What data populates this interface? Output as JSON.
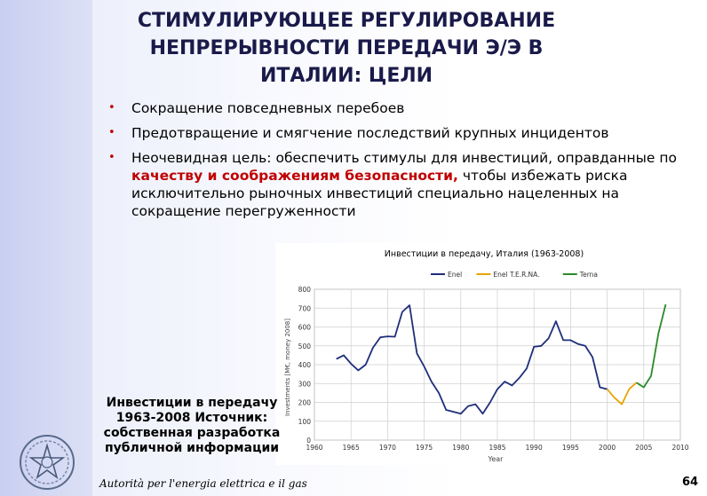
{
  "slide": {
    "title_lines": [
      "СТИМУЛИРУЮЩЕЕ РЕГУЛИРОВАНИЕ",
      "НЕПРЕРЫВНОСТИ ПЕРЕДАЧИ Э/Э В",
      "ИТАЛИИ: ЦЕЛИ"
    ],
    "bullets": [
      {
        "text": "Сокращение повседневных перебоев"
      },
      {
        "text": "Предотвращение и смягчение последствий крупных инцидентов"
      },
      {
        "text_before": "Неочевидная цель: обеспечить стимулы для инвестиций, оправданные по ",
        "highlight": "качеству и соображениям безопасности,",
        "text_after": " чтобы избежать риска исключительно рыночных инвестиций специально нацеленных на сокращение перегруженности"
      }
    ],
    "bullet_symbol": "•",
    "caption": "Инвестиции в передачу 1963-2008 Источник: собственная разработка публичной информации",
    "footer": "Autorità per l'energia elettrica e il gas",
    "page_number": "64",
    "colors": {
      "accent_red": "#c00000",
      "title": "#1a1a4a"
    }
  },
  "chart_data": {
    "type": "line",
    "title": "Инвестиции в передачу, Италия (1963-2008)",
    "xlabel": "Year",
    "ylabel": "Investments [M€, money 2008]",
    "xlim": [
      1960,
      2010
    ],
    "ylim": [
      0,
      800
    ],
    "xticks": [
      1960,
      1965,
      1970,
      1975,
      1980,
      1985,
      1990,
      1995,
      2000,
      2005,
      2010
    ],
    "yticks": [
      0,
      100,
      200,
      300,
      400,
      500,
      600,
      700,
      800
    ],
    "grid": true,
    "legend_position": "top",
    "series": [
      {
        "name": "Enel",
        "color": "#1f2f7a",
        "points": [
          [
            1963,
            430
          ],
          [
            1964,
            450
          ],
          [
            1965,
            405
          ],
          [
            1966,
            370
          ],
          [
            1967,
            400
          ],
          [
            1968,
            490
          ],
          [
            1969,
            545
          ],
          [
            1970,
            550
          ],
          [
            1971,
            548
          ],
          [
            1972,
            680
          ],
          [
            1973,
            715
          ],
          [
            1974,
            460
          ],
          [
            1975,
            390
          ],
          [
            1976,
            310
          ],
          [
            1977,
            250
          ],
          [
            1978,
            160
          ],
          [
            1979,
            150
          ],
          [
            1980,
            140
          ],
          [
            1981,
            180
          ],
          [
            1982,
            190
          ],
          [
            1983,
            140
          ],
          [
            1984,
            200
          ],
          [
            1985,
            270
          ],
          [
            1986,
            310
          ],
          [
            1987,
            290
          ],
          [
            1988,
            330
          ],
          [
            1989,
            380
          ],
          [
            1990,
            495
          ],
          [
            1991,
            500
          ],
          [
            1992,
            540
          ],
          [
            1993,
            630
          ],
          [
            1994,
            530
          ],
          [
            1995,
            530
          ],
          [
            1996,
            510
          ],
          [
            1997,
            500
          ],
          [
            1998,
            440
          ],
          [
            1999,
            280
          ],
          [
            2000,
            270
          ]
        ]
      },
      {
        "name": "Enel T.E.R.NA.",
        "color": "#e8a400",
        "points": [
          [
            2000,
            270
          ],
          [
            2001,
            225
          ],
          [
            2002,
            190
          ],
          [
            2003,
            270
          ],
          [
            2004,
            305
          ]
        ]
      },
      {
        "name": "Terna",
        "color": "#2a8a2a",
        "points": [
          [
            2004,
            305
          ],
          [
            2005,
            280
          ],
          [
            2006,
            340
          ],
          [
            2007,
            565
          ],
          [
            2008,
            720
          ]
        ]
      }
    ]
  }
}
